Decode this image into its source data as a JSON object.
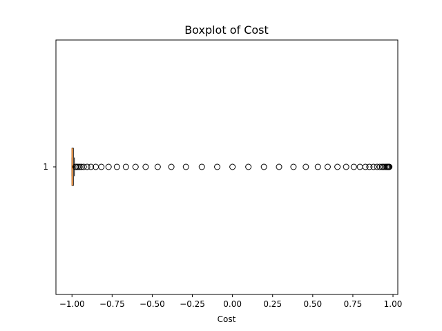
{
  "chart_data": {
    "type": "boxplot",
    "title": "Boxplot of Cost",
    "xlabel": "Cost",
    "ylabel": "",
    "orientation": "horizontal",
    "xlim": [
      -1.1,
      1.03
    ],
    "x_ticks": [
      -1.0,
      -0.75,
      -0.5,
      -0.25,
      0.0,
      0.25,
      0.5,
      0.75,
      1.0
    ],
    "x_tick_labels": [
      "−1.00",
      "−0.75",
      "−0.50",
      "−0.25",
      "0.00",
      "0.25",
      "0.50",
      "0.75",
      "1.00"
    ],
    "y_tick_labels": [
      "1"
    ],
    "grid": false,
    "box": {
      "q1": -1.0,
      "median": -0.999,
      "q3": -0.994,
      "whisker_low": -1.0,
      "whisker_high": -0.985,
      "box_color": "#000000",
      "median_color": "#ff7f0e"
    },
    "outliers": [
      -0.978,
      -0.972,
      -0.963,
      -0.953,
      -0.942,
      -0.927,
      -0.906,
      -0.882,
      -0.852,
      -0.817,
      -0.772,
      -0.72,
      -0.664,
      -0.604,
      -0.541,
      -0.466,
      -0.381,
      -0.29,
      -0.191,
      -0.095,
      0.0,
      0.099,
      0.196,
      0.29,
      0.38,
      0.457,
      0.532,
      0.593,
      0.654,
      0.708,
      0.756,
      0.794,
      0.828,
      0.853,
      0.879,
      0.901,
      0.918,
      0.932,
      0.942,
      0.952,
      0.96,
      0.966,
      0.97,
      0.974,
      0.977
    ]
  }
}
